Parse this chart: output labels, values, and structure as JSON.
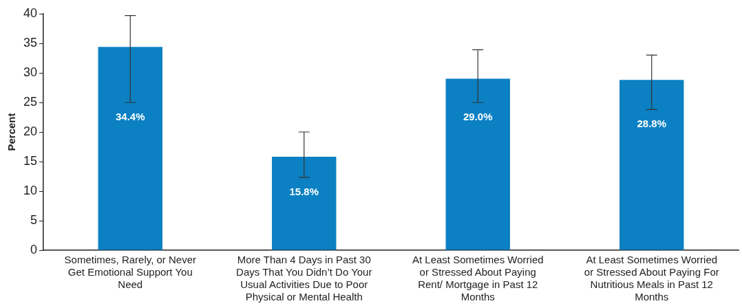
{
  "chart_data": {
    "type": "bar",
    "ylabel": "Percent",
    "categories": [
      "Sometimes, Rarely, or Never Get Emotional Support You Need",
      "More Than 4 Days in Past 30 Days That You Didn’t Do Your Usual Activities Due to Poor Physical or Mental Health",
      "At Least Sometimes Worried or Stressed About Paying Rent/ Mortgage in Past 12 Months",
      "At Least Sometimes Worried or Stressed About Paying For Nutritious Meals in Past 12 Months"
    ],
    "values": [
      34.4,
      15.8,
      29.0,
      28.8
    ],
    "errors": [
      [
        25,
        39.7
      ],
      [
        12.3,
        20
      ],
      [
        25,
        33.9
      ],
      [
        23.8,
        33
      ]
    ],
    "value_labels": [
      "34.4%",
      "15.8%",
      "29.0%",
      "28.8%"
    ],
    "color": "#0b80c3",
    "ylim": [
      0,
      40
    ],
    "yticks": [
      0,
      5,
      10,
      15,
      20,
      25,
      30,
      35,
      40
    ],
    "grid": false,
    "legend": false
  }
}
